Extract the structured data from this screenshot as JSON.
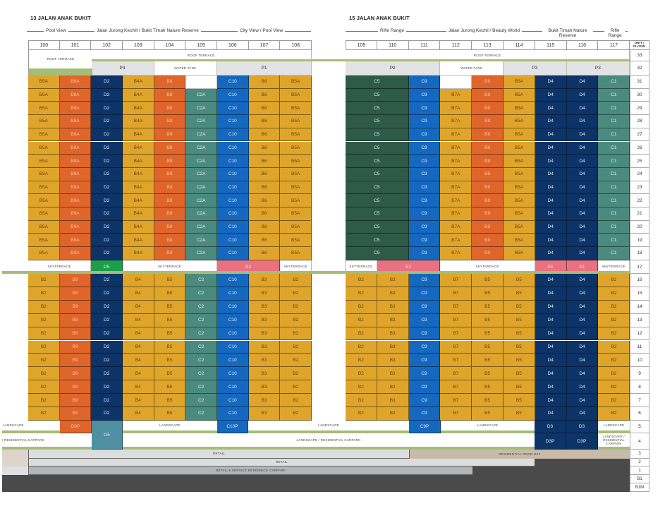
{
  "titles": {
    "left": "13 JALAN ANAK BUKIT",
    "right": "15 JALAN ANAK BUKIT"
  },
  "directions": {
    "left": [
      "Pool View",
      "Jalan Jurong Kechill / Bukit Timah Nature Reserve",
      "City View / Pool View"
    ],
    "right": [
      "Rifle Range",
      "Jalan Jurong Kechil / Beauty World",
      "Bukit Timah Nature Reserve",
      "Rifle Range"
    ]
  },
  "units_left": [
    "100",
    "101",
    "102",
    "103",
    "104",
    "105",
    "106",
    "107",
    "108"
  ],
  "units_right": [
    "109",
    "110",
    "111",
    "112",
    "113",
    "114",
    "115",
    "116",
    "117"
  ],
  "unit_floor_header": "UNIT / FLOOR",
  "colors": {
    "y": "#dfa52b",
    "o": "#e0652b",
    "n": "#0d3468",
    "t": "#4b8b7f",
    "b": "#1468c0",
    "g": "#2e5a48",
    "p": "#e8727f",
    "gr": "#1c9e4b",
    "s": "#4f8fa2",
    "pg": "#e2e3e5",
    "w": "#ffffff"
  },
  "roof_terrace_left": "ROOF TERRACE",
  "groups": [
    {
      "floors": [
        "33"
      ],
      "cells": [
        {
          "t": "",
          "k": "none",
          "s": 2
        },
        {
          "t": "ROOF TERRACE",
          "k": "w",
          "s": 7
        },
        {
          "t": "",
          "k": "none",
          "s": 1
        },
        {
          "t": "ROOF TERRACE",
          "k": "w",
          "s": 9
        }
      ]
    },
    {
      "floors": [
        "32"
      ],
      "cells": [
        {
          "t": "",
          "k": "none",
          "s": 2
        },
        {
          "t": "P4",
          "k": "pg",
          "s": 2
        },
        {
          "t": "WATER TANK",
          "k": "w",
          "s": 2
        },
        {
          "t": "P1",
          "k": "pg",
          "s": 3
        },
        {
          "t": "",
          "k": "none",
          "s": 1
        },
        {
          "t": "P2",
          "k": "pg",
          "s": 3
        },
        {
          "t": "WATER TANK",
          "k": "w",
          "s": 2
        },
        {
          "t": "P3",
          "k": "pg",
          "s": 2
        },
        {
          "t": "P3",
          "k": "pg",
          "s": 2
        }
      ]
    },
    {
      "floors": [
        "31"
      ],
      "cells": [
        {
          "t": "B5A",
          "k": "y"
        },
        {
          "t": "B9A",
          "k": "o"
        },
        {
          "t": "D2",
          "k": "n"
        },
        {
          "t": "B4A",
          "k": "y"
        },
        {
          "t": "B8",
          "k": "o"
        },
        {
          "t": "",
          "k": "w"
        },
        {
          "t": "C10",
          "k": "b"
        },
        {
          "t": "B6",
          "k": "y"
        },
        {
          "t": "B5A",
          "k": "y"
        },
        {
          "t": "",
          "k": "none"
        },
        {
          "t": "C5",
          "k": "g",
          "s": 2
        },
        {
          "t": "C9",
          "k": "b"
        },
        {
          "t": "",
          "k": "w"
        },
        {
          "t": "B8",
          "k": "o"
        },
        {
          "t": "B5A",
          "k": "y"
        },
        {
          "t": "D4",
          "k": "n"
        },
        {
          "t": "D4",
          "k": "n"
        },
        {
          "t": "C1",
          "k": "t"
        }
      ]
    },
    {
      "floors": [
        "30",
        "29",
        "28",
        "27",
        "26",
        "25",
        "24",
        "23",
        "22",
        "21",
        "20",
        "19",
        "18"
      ],
      "cells": [
        {
          "t": "B5A",
          "k": "y"
        },
        {
          "t": "B9A",
          "k": "o"
        },
        {
          "t": "D2",
          "k": "n"
        },
        {
          "t": "B4A",
          "k": "y"
        },
        {
          "t": "B8",
          "k": "o"
        },
        {
          "t": "C2A",
          "k": "t"
        },
        {
          "t": "C10",
          "k": "b"
        },
        {
          "t": "B6",
          "k": "y"
        },
        {
          "t": "B5A",
          "k": "y"
        },
        {
          "t": "",
          "k": "none"
        },
        {
          "t": "C5",
          "k": "g",
          "s": 2
        },
        {
          "t": "C9",
          "k": "b"
        },
        {
          "t": "B7A",
          "k": "y"
        },
        {
          "t": "B8",
          "k": "o"
        },
        {
          "t": "B5A",
          "k": "y"
        },
        {
          "t": "D4",
          "k": "n"
        },
        {
          "t": "D4",
          "k": "n"
        },
        {
          "t": "C1",
          "k": "t"
        }
      ]
    },
    {
      "floors": [
        "17"
      ],
      "cells": [
        {
          "t": "SKYTERRACE",
          "k": "w",
          "s": 2
        },
        {
          "t": "D5",
          "k": "gr"
        },
        {
          "t": "SKYTERRACE",
          "k": "w",
          "s": 3
        },
        {
          "t": "E3",
          "k": "p",
          "s": 2
        },
        {
          "t": "SKYTERRACE",
          "k": "w"
        },
        {
          "t": "",
          "k": "w"
        },
        {
          "t": "SKYTERRACE",
          "k": "w"
        },
        {
          "t": "E2",
          "k": "p",
          "s": 2
        },
        {
          "t": "SKYTERRACE",
          "k": "w",
          "s": 3
        },
        {
          "t": "E1",
          "k": "p"
        },
        {
          "t": "E1",
          "k": "p"
        },
        {
          "t": "SKYTERRACE",
          "k": "w"
        }
      ]
    },
    {
      "floors": [
        "16",
        "15",
        "14",
        "13",
        "12",
        "11",
        "10",
        "9",
        "8",
        "7",
        "6"
      ],
      "cells": [
        {
          "t": "B2",
          "k": "y"
        },
        {
          "t": "B9",
          "k": "o"
        },
        {
          "t": "D2",
          "k": "n"
        },
        {
          "t": "B4",
          "k": "y"
        },
        {
          "t": "B5",
          "k": "y"
        },
        {
          "t": "C2",
          "k": "t"
        },
        {
          "t": "C10",
          "k": "b"
        },
        {
          "t": "B3",
          "k": "y"
        },
        {
          "t": "B2",
          "k": "y"
        },
        {
          "t": "",
          "k": "none"
        },
        {
          "t": "B2",
          "k": "y"
        },
        {
          "t": "B3",
          "k": "y"
        },
        {
          "t": "C9",
          "k": "b"
        },
        {
          "t": "B7",
          "k": "y"
        },
        {
          "t": "B5",
          "k": "y"
        },
        {
          "t": "B5",
          "k": "y"
        },
        {
          "t": "D4",
          "k": "n"
        },
        {
          "t": "D4",
          "k": "n"
        },
        {
          "t": "B2",
          "k": "y"
        }
      ]
    }
  ],
  "floor_labels": [
    "33",
    "32",
    "31",
    "30",
    "29",
    "28",
    "27",
    "26",
    "25",
    "24",
    "23",
    "22",
    "21",
    "20",
    "19",
    "18",
    "17",
    "16",
    "15",
    "14",
    "13",
    "12",
    "11",
    "10",
    "9",
    "8",
    "7",
    "6",
    "5",
    "4",
    "3",
    "2",
    "1",
    "B1",
    "B1M"
  ],
  "podium": {
    "landscape": "LANDSCAPE",
    "b9p": "B9P",
    "g5": "G5",
    "c10p": "C10P",
    "c9p": "C9P",
    "d3": "D3",
    "d3p": "D3P",
    "res_carpark_left": "/ RESIDENTIAL CARPARK",
    "landscape_res_carpark": "LANDSCAPE / RESIDENTIAL CARPARK",
    "landscape_res_carpark_right": "LANDSCAPE / RESIDENTIAL CARPARK",
    "retail_3": "RETAIL",
    "residential_drop_off": "RESIDENTIAL DROP-OFF",
    "retail_2": "RETAIL",
    "retail_service_carpark": "RETAIL & SERVICE RESIDENCE CARPARK"
  }
}
